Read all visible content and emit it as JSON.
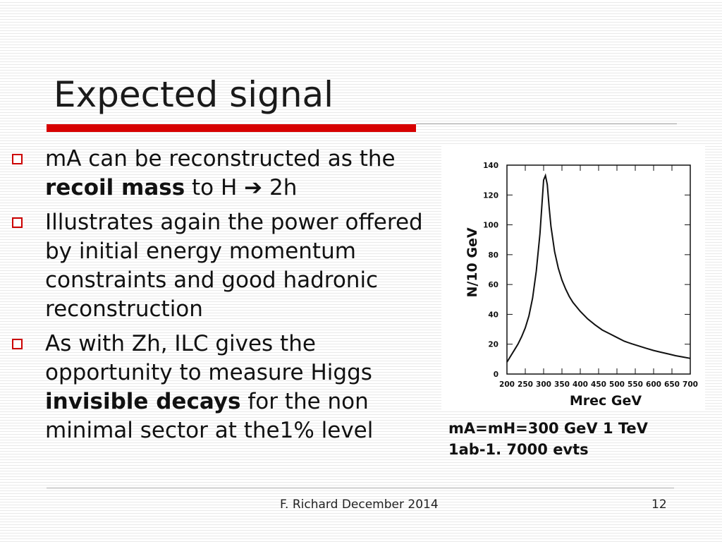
{
  "slide": {
    "title": "Expected signal",
    "bullets": [
      {
        "segments": [
          {
            "text": "mA can be reconstructed as the "
          },
          {
            "text": "recoil mass",
            "bold": true
          },
          {
            "text": " to H ➔ 2h"
          }
        ]
      },
      {
        "segments": [
          {
            "text": "Illustrates again the power offered by initial energy momentum constraints  and good hadronic reconstruction"
          }
        ]
      },
      {
        "segments": [
          {
            "text": "As with Zh, ILC gives the opportunity to measure Higgs "
          },
          {
            "text": "invisible decays",
            "bold": true
          },
          {
            "text": " for the non minimal sector at the1% level"
          }
        ]
      }
    ],
    "caption": {
      "line1": "mA=mH=300 GeV 1 TeV",
      "line2": "1ab-1. 7000 evts"
    },
    "footer": "F. Richard December 2014",
    "page_number": "12",
    "colors": {
      "accent": "#d70000",
      "bullet_box": "#cc0000",
      "text": "#111111"
    }
  },
  "chart_data": {
    "type": "line",
    "title": "",
    "xlabel": "Mrec GeV",
    "ylabel": "N/10 GeV",
    "xlim": [
      200,
      700
    ],
    "ylim": [
      0,
      140
    ],
    "xticks": [
      200,
      250,
      300,
      350,
      400,
      450,
      500,
      550,
      600,
      650,
      700
    ],
    "yticks": [
      0,
      20,
      40,
      60,
      80,
      100,
      120,
      140
    ],
    "grid": false,
    "legend": "none",
    "series": [
      {
        "x": [
          200,
          210,
          220,
          230,
          240,
          250,
          260,
          270,
          280,
          290,
          295,
          300,
          305,
          310,
          315,
          320,
          330,
          340,
          350,
          360,
          370,
          380,
          400,
          420,
          440,
          460,
          480,
          500,
          520,
          540,
          560,
          580,
          600,
          620,
          640,
          660,
          680,
          700
        ],
        "values": [
          8,
          12,
          16,
          20,
          25,
          31,
          39,
          51,
          69,
          94,
          112,
          130,
          133,
          127,
          112,
          99,
          82,
          71,
          63,
          57,
          52,
          48,
          42,
          37,
          33,
          29.5,
          27,
          24.5,
          22,
          20.3,
          18.8,
          17.2,
          15.8,
          14.6,
          13.5,
          12.3,
          11.4,
          10.5
        ]
      }
    ]
  }
}
